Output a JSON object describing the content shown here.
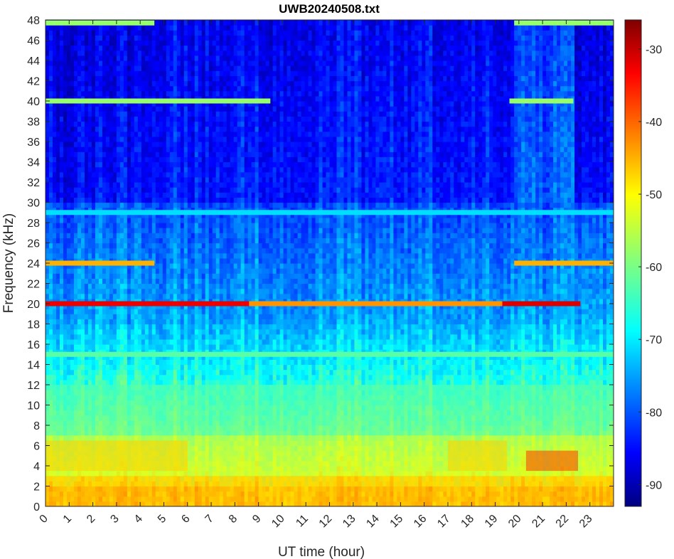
{
  "chart_data": {
    "type": "heatmap",
    "title": "UWB20240508.txt",
    "xlabel": "UT time (hour)",
    "ylabel": "Frequency (kHz)",
    "xlim": [
      0,
      24
    ],
    "ylim": [
      0,
      48
    ],
    "x_ticks": [
      0,
      1,
      2,
      3,
      4,
      5,
      6,
      7,
      8,
      9,
      10,
      11,
      12,
      13,
      14,
      15,
      16,
      17,
      18,
      19,
      20,
      21,
      22,
      23
    ],
    "y_ticks": [
      0,
      2,
      4,
      6,
      8,
      10,
      12,
      14,
      16,
      18,
      20,
      22,
      24,
      26,
      28,
      30,
      32,
      34,
      36,
      38,
      40,
      42,
      44,
      46,
      48
    ],
    "colorbar": {
      "colormap": "jet",
      "range": [
        -93,
        -26
      ],
      "ticks": [
        -90,
        -80,
        -70,
        -60,
        -50,
        -40,
        -30
      ]
    },
    "features": [
      {
        "kind": "hband",
        "f0": 0,
        "f1": 3,
        "t0": 0,
        "t1": 24,
        "level": -47
      },
      {
        "kind": "hband",
        "f0": 3,
        "f1": 7,
        "t0": 0,
        "t1": 24,
        "level": -55
      },
      {
        "kind": "hband",
        "f0": 3.5,
        "f1": 6.5,
        "t0": 0,
        "t1": 6,
        "level": -48
      },
      {
        "kind": "hband",
        "f0": 3.5,
        "f1": 6.5,
        "t0": 17,
        "t1": 19.5,
        "level": -48
      },
      {
        "kind": "hband",
        "f0": 3.5,
        "f1": 5.5,
        "t0": 20.3,
        "t1": 22.5,
        "level": -38
      },
      {
        "kind": "hband",
        "f0": 7,
        "f1": 12,
        "t0": 0,
        "t1": 24,
        "level": -62
      },
      {
        "kind": "line",
        "f": 20,
        "t0": 0,
        "t1": 8.6,
        "level": -33
      },
      {
        "kind": "line",
        "f": 20,
        "t0": 8.6,
        "t1": 19.3,
        "level": -44
      },
      {
        "kind": "line",
        "f": 20,
        "t0": 19.3,
        "t1": 22.6,
        "level": -32
      },
      {
        "kind": "line",
        "f": 24,
        "t0": 0,
        "t1": 4.6,
        "level": -46
      },
      {
        "kind": "line",
        "f": 24,
        "t0": 19.8,
        "t1": 24,
        "level": -46
      },
      {
        "kind": "line",
        "f": 40,
        "t0": 0,
        "t1": 9.5,
        "level": -58
      },
      {
        "kind": "line",
        "f": 40,
        "t0": 19.6,
        "t1": 22.3,
        "level": -58
      },
      {
        "kind": "line",
        "f": 15,
        "t0": 0,
        "t1": 24,
        "level": -62
      },
      {
        "kind": "line",
        "f": 29,
        "t0": 0,
        "t1": 24,
        "level": -70
      },
      {
        "kind": "line",
        "f": 47.7,
        "t0": 0,
        "t1": 4.6,
        "level": -58
      },
      {
        "kind": "line",
        "f": 47.7,
        "t0": 19.8,
        "t1": 24,
        "level": -58
      }
    ]
  }
}
